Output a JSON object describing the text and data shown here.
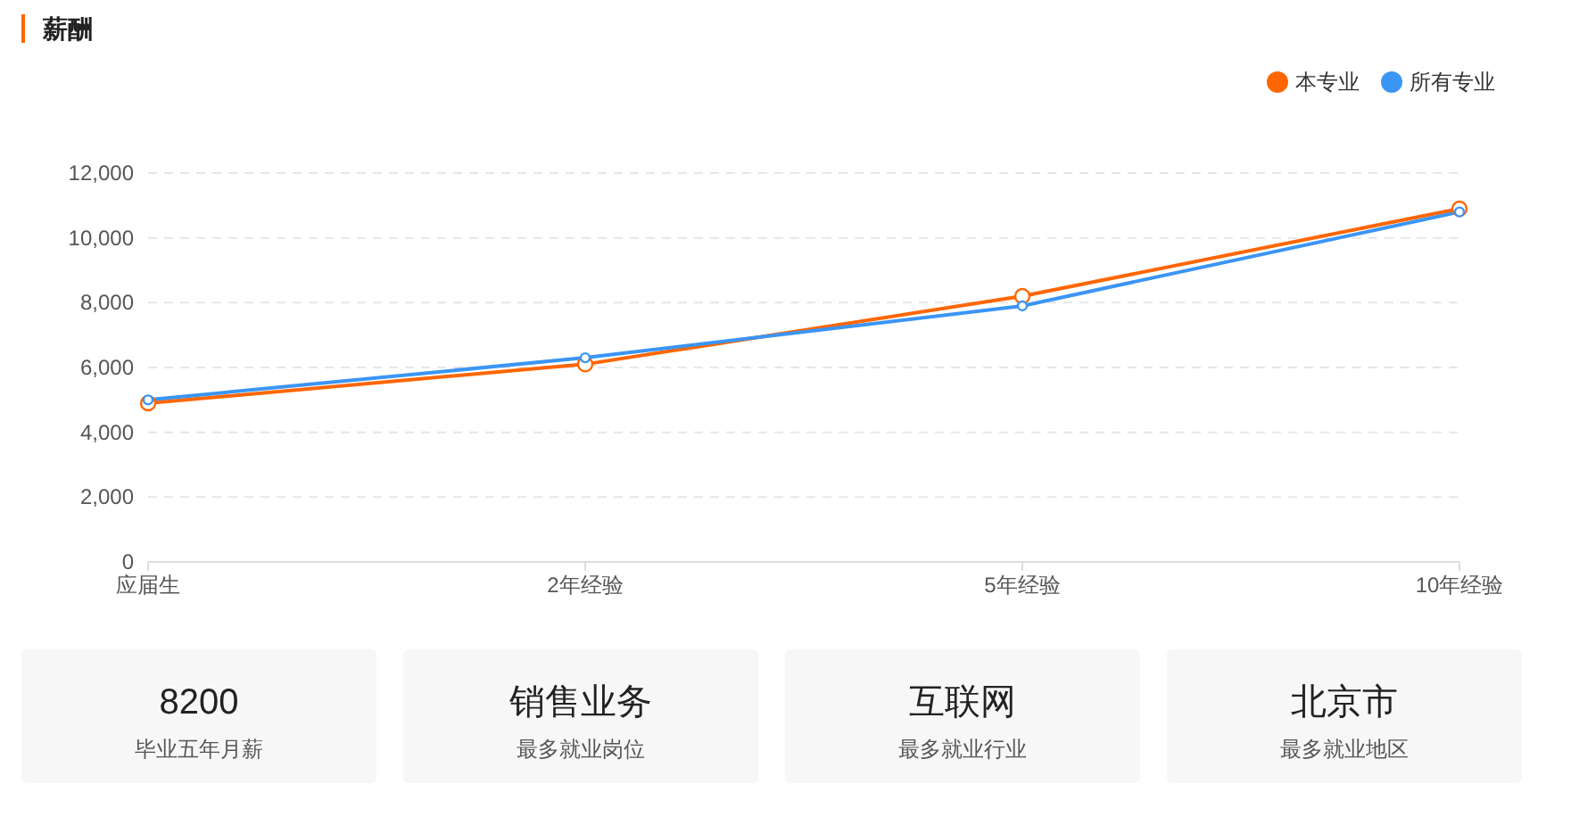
{
  "chart_data": [
    {
      "type": "line",
      "title": "薪酬",
      "categories": [
        "应届生",
        "2年经验",
        "5年经验",
        "10年经验"
      ],
      "series": [
        {
          "name": "本专业",
          "color": "#ff6600",
          "values": [
            4900,
            6100,
            8200,
            10900
          ]
        },
        {
          "name": "所有专业",
          "color": "#3b95f5",
          "values": [
            5000,
            6300,
            7900,
            10800
          ]
        }
      ],
      "ylim": [
        0,
        12000
      ],
      "yticks": [
        {
          "value": 0,
          "label": "0"
        },
        {
          "value": 2000,
          "label": "2,000"
        },
        {
          "value": 4000,
          "label": "4,000"
        },
        {
          "value": 6000,
          "label": "6,000"
        },
        {
          "value": 8000,
          "label": "8,000"
        },
        {
          "value": 10000,
          "label": "10,000"
        },
        {
          "value": 12000,
          "label": "12,000"
        }
      ],
      "grid": "y",
      "legend": "top right",
      "marker": "circle",
      "line_style": "solid"
    },
    {
      "type": "other",
      "title": "8200",
      "subtitle": "毕业五年月薪"
    },
    {
      "type": "other",
      "title": "销售业务",
      "subtitle": "最多就业岗位"
    },
    {
      "type": "other",
      "title": "互联网",
      "subtitle": "最多就业行业"
    },
    {
      "type": "other",
      "title": "北京市",
      "subtitle": "最多就业地区"
    }
  ]
}
